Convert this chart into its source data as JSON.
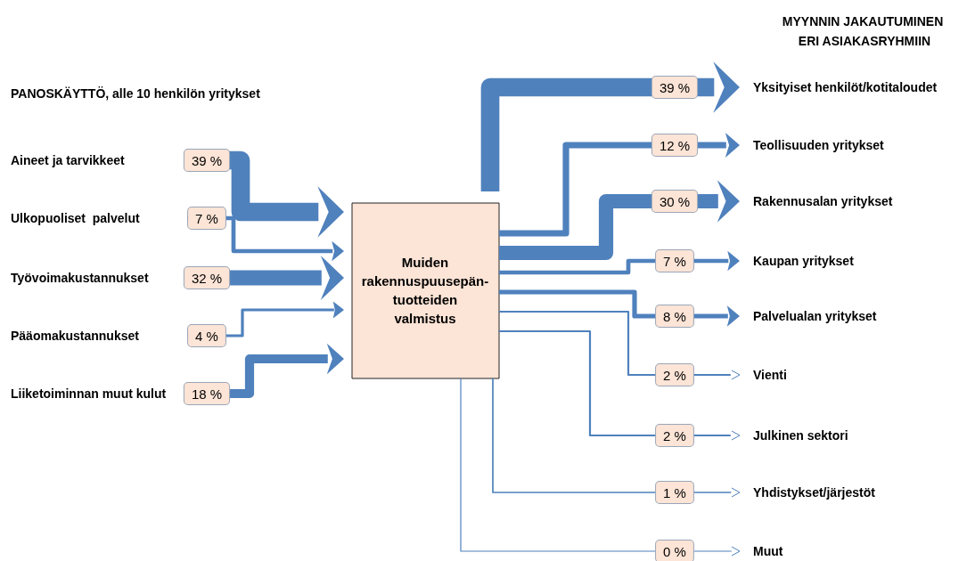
{
  "chart_data": [
    {
      "type": "other",
      "title": "PANOSKÄYTTÖ, alle 10 henkilön yritykset",
      "annotations": [
        "Muiden rakennuspuusepän-tuotteiden valmistus"
      ],
      "categories": [
        "Aineet ja tarvikkeet",
        "Ulkopuoliset  palvelut",
        "Työvoimakustannukset",
        "Pääomakustannukset",
        "Liiketoiminnan muut kulut"
      ],
      "values": [
        39,
        7,
        32,
        4,
        18
      ],
      "value_labels": [
        "39 %",
        "7 %",
        "32 %",
        "4 %",
        "18 %"
      ]
    },
    {
      "type": "other",
      "title": "MYYNNIN JAKAUTUMINEN ERI ASIAKASRYHMIIN",
      "categories": [
        "Yksityiset henkilöt/kotitaloudet",
        "Teollisuuden yritykset",
        "Rakennusalan yritykset",
        "Kaupan yritykset",
        "Palvelualan yritykset",
        "Vienti",
        "Julkinen sektori",
        "Yhdistykset/järjestöt",
        "Muut"
      ],
      "values": [
        39,
        12,
        30,
        7,
        8,
        2,
        2,
        1,
        0
      ],
      "value_labels": [
        "39 %",
        "12 %",
        "30 %",
        "7 %",
        "8 %",
        "2 %",
        "2 %",
        "1 %",
        "0 %"
      ]
    }
  ]
}
